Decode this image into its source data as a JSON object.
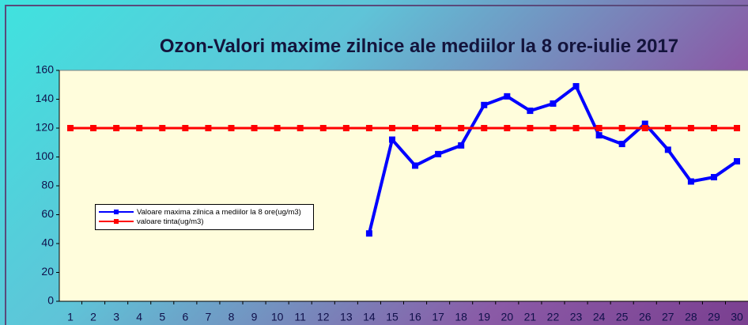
{
  "chart_data": {
    "type": "line",
    "title": "Ozon-Valori maxime zilnice ale mediilor la 8 ore-iulie 2017",
    "categories": [
      "1",
      "2",
      "3",
      "4",
      "5",
      "6",
      "7",
      "8",
      "9",
      "10",
      "11",
      "12",
      "13",
      "14",
      "15",
      "16",
      "17",
      "18",
      "19",
      "20",
      "21",
      "22",
      "23",
      "24",
      "25",
      "26",
      "27",
      "28",
      "29",
      "30"
    ],
    "series": [
      {
        "name": "Valoare maxima zilnica a mediilor  la 8 ore(ug/m3)",
        "color": "#0000ff",
        "values": [
          null,
          null,
          null,
          null,
          null,
          null,
          null,
          null,
          null,
          null,
          null,
          null,
          null,
          47,
          112,
          94,
          102,
          108,
          136,
          142,
          132,
          137,
          149,
          115,
          109,
          123,
          105,
          83,
          86,
          97
        ]
      },
      {
        "name": "valoare tinta(ug/m3)",
        "color": "#ff0000",
        "values": [
          120,
          120,
          120,
          120,
          120,
          120,
          120,
          120,
          120,
          120,
          120,
          120,
          120,
          120,
          120,
          120,
          120,
          120,
          120,
          120,
          120,
          120,
          120,
          120,
          120,
          120,
          120,
          120,
          120,
          120
        ]
      }
    ],
    "ylim": [
      0,
      160
    ],
    "yticks": [
      0,
      20,
      40,
      60,
      80,
      100,
      120,
      140,
      160
    ],
    "grid": false,
    "legend": "center-left"
  }
}
